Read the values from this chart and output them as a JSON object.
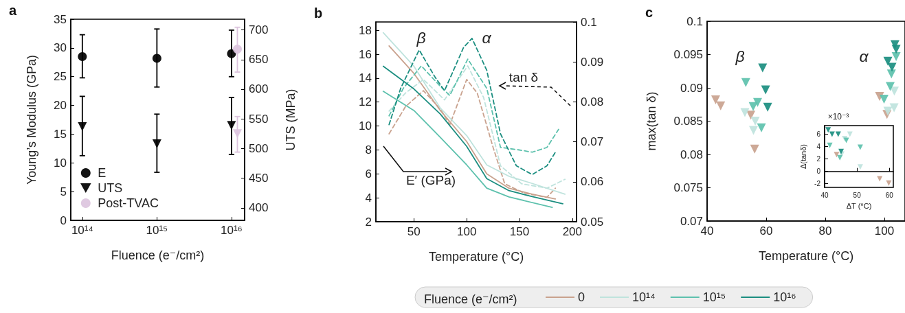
{
  "chart_data": [
    {
      "type": "scatter",
      "title": "a",
      "xlabel": "Fluence (e⁻/cm²)",
      "ylabel": "Young’s Modulus (GPa)",
      "y2label": "UTS (MPa)",
      "log": "x",
      "legend": "bottom left",
      "xlim": [
        70000000000000.0,
        1.5e+16
      ],
      "xticks": [
        {
          "value": 100000000000000.0,
          "label": "10¹⁴"
        },
        {
          "value": 1000000000000000.0,
          "label": "10¹⁵"
        },
        {
          "value": 1e+16,
          "label": "10¹⁶"
        }
      ],
      "ylim": [
        0,
        35
      ],
      "yticks": [
        0,
        5,
        10,
        15,
        20,
        25,
        30,
        35
      ],
      "y2lim": [
        379,
        718
      ],
      "y2ticks": [
        400,
        450,
        500,
        550,
        600,
        650,
        700
      ],
      "series": [
        {
          "name": "E",
          "color": "#000000",
          "marker": "circle",
          "x": [
            100000000000000.0,
            1000000000000000.0,
            1e+16
          ],
          "values": [
            28.5,
            28.2,
            29
          ],
          "errors": [
            [
              24.8,
              32.3
            ],
            [
              23.2,
              33.3
            ],
            [
              25,
              33.1
            ]
          ]
        },
        {
          "name": "UTS",
          "color": "#000000",
          "marker": "triangle",
          "axis": "y2",
          "x": [
            100000000000000.0,
            1000000000000000.0,
            1e+16
          ],
          "values": [
            537,
            508,
            539
          ],
          "errors": [
            [
              488,
              588
            ],
            [
              460,
              558
            ],
            [
              490,
              586
            ]
          ]
        },
        {
          "name": "Post-TVAC",
          "color": "#dcc4de",
          "marker": "circle",
          "x": [
            1.2e+16
          ],
          "values": [
            29.8
          ],
          "errors": [
            [
              25.8,
              33.6
            ]
          ]
        },
        {
          "color": "#dcc4de",
          "marker": "triangle",
          "axis": "y2",
          "x": [
            1.2e+16
          ],
          "values": [
            525
          ],
          "errors": [
            [
              494,
              554
            ]
          ]
        }
      ]
    },
    {
      "type": "line",
      "title": "b",
      "xlabel": "Temperature (°C)",
      "marker": "none",
      "legend": "bottom",
      "legend_title": "Fluence (e⁻/cm²)",
      "xlim": [
        14,
        204
      ],
      "xticks": [
        50,
        100,
        150,
        200
      ],
      "ylim": [
        2,
        18.7
      ],
      "yticks": [
        2,
        4,
        6,
        8,
        10,
        12,
        14,
        16,
        18
      ],
      "y2lim": [
        0.05,
        0.1
      ],
      "y2ticks": [
        0.05,
        0.06,
        0.07,
        0.08,
        0.09,
        0.1
      ],
      "annotations": [
        "β",
        "α",
        "tan δ",
        "E′ (GPa)"
      ],
      "series": [
        {
          "name": "0",
          "color": "#c9a28e",
          "line_style": "solid",
          "x": [
            26.5,
            50,
            75,
            100,
            119,
            140,
            162,
            184
          ],
          "values": [
            16.7,
            14.4,
            11.3,
            8.7,
            6.0,
            4.8,
            4.3,
            3.9
          ]
        },
        {
          "color": "#c9a28e",
          "line_style": "dashed",
          "axis": "y2",
          "x": [
            26.5,
            42,
            59,
            75,
            84,
            100,
            110,
            125,
            136,
            154,
            176,
            184
          ],
          "values": [
            0.072,
            0.0788,
            0.0828,
            0.0782,
            0.0743,
            0.0856,
            0.0822,
            0.0686,
            0.0595,
            0.0572,
            0.0561,
            0.0584
          ]
        },
        {
          "name": "10¹⁴",
          "color": "#bfe3dd",
          "line_style": "solid",
          "x": [
            21,
            50,
            75,
            100,
            119,
            140,
            162,
            193
          ],
          "values": [
            17.8,
            15.0,
            11.5,
            9.2,
            6.75,
            5.8,
            5.2,
            4.3
          ]
        },
        {
          "color": "#bfe3dd",
          "line_style": "dashed",
          "axis": "y2",
          "x": [
            26.5,
            42,
            59,
            79,
            101,
            116,
            132,
            152,
            176,
            193
          ],
          "values": [
            0.0777,
            0.0822,
            0.0856,
            0.0805,
            0.089,
            0.0811,
            0.064,
            0.0595,
            0.0584,
            0.0606
          ]
        },
        {
          "name": "10¹⁵",
          "color": "#5dc1ad",
          "line_style": "solid",
          "x": [
            21,
            50,
            75,
            100,
            119,
            140,
            181
          ],
          "values": [
            12.9,
            11.3,
            9.05,
            6.75,
            4.8,
            4.07,
            3.2
          ]
        },
        {
          "color": "#5dc1ad",
          "line_style": "dashed",
          "axis": "y2",
          "x": [
            26.5,
            40,
            57,
            75,
            84,
            101,
            119,
            132,
            149,
            162,
            176,
            187
          ],
          "values": [
            0.0765,
            0.0834,
            0.089,
            0.0839,
            0.0816,
            0.0907,
            0.0834,
            0.0686,
            0.068,
            0.0674,
            0.0686,
            0.0731
          ]
        },
        {
          "name": "10¹⁶",
          "color": "#1b8e80",
          "line_style": "solid",
          "x": [
            21,
            50,
            75,
            100,
            119,
            140,
            162,
            191
          ],
          "values": [
            15.0,
            13.1,
            11.0,
            8.3,
            5.6,
            4.6,
            4.1,
            3.5
          ]
        },
        {
          "color": "#1b8e80",
          "line_style": "dashed",
          "axis": "y2",
          "x": [
            26.5,
            37.5,
            55,
            70,
            79,
            97,
            105,
            119,
            132,
            147,
            162,
            176,
            184
          ],
          "values": [
            0.0743,
            0.0834,
            0.093,
            0.0862,
            0.0828,
            0.0936,
            0.0959,
            0.0879,
            0.072,
            0.064,
            0.0618,
            0.064,
            0.0674
          ]
        }
      ]
    },
    {
      "type": "scatter",
      "title": "c",
      "xlabel": "Temperature (°C)",
      "ylabel": "max(tan δ)",
      "marker": "triangle",
      "xlim": [
        40,
        107
      ],
      "xticks": [
        40,
        60,
        80,
        100
      ],
      "ylim": [
        0.07,
        0.1
      ],
      "yticks": [
        0.07,
        0.075,
        0.08,
        0.085,
        0.09,
        0.095,
        0.1
      ],
      "annotations": [
        "β",
        "α"
      ],
      "series": [
        {
          "color": "#c9a28e",
          "x": [
            42.9,
            44.6,
            54.8,
            56.1,
            98.4,
            100.9
          ],
          "values": [
            0.0882,
            0.0873,
            0.0859,
            0.0808,
            0.0887,
            0.086
          ]
        },
        {
          "color": "#bfe3dd",
          "x": [
            52.8,
            56.3,
            55.7,
            101.2,
            103.4,
            103.3
          ],
          "values": [
            0.0863,
            0.085,
            0.0836,
            0.0865,
            0.0895,
            0.087
          ]
        },
        {
          "color": "#5dc1ad",
          "x": [
            53.1,
            55.6,
            57.1,
            58.4,
            99.9,
            102,
            102.4,
            104
          ],
          "values": [
            0.0908,
            0.0872,
            0.0878,
            0.084,
            0.0883,
            0.0902,
            0.0921,
            0.0947
          ]
        },
        {
          "color": "#1b8e80",
          "x": [
            58.8,
            59.8,
            60.5,
            101.2,
            102.6,
            103.6,
            104
          ],
          "values": [
            0.093,
            0.0897,
            0.0871,
            0.094,
            0.0931,
            0.0965,
            0.0958
          ]
        }
      ]
    },
    {
      "type": "scatter",
      "xlabel": "ΔT (°C)",
      "ylabel": "Δ(tanδ)",
      "marker": "triangle",
      "annotations": [
        "×10⁻³"
      ],
      "xlim": [
        40,
        61.2
      ],
      "xticks": [
        40,
        50,
        60
      ],
      "ylim": [
        -2.6,
        7.4
      ],
      "yticks": [
        -2,
        0,
        2,
        4,
        6
      ],
      "series": [
        {
          "color": "#c9a28e",
          "x": [
            43.7,
            57,
            59.8
          ],
          "values": [
            2.7,
            -1.2,
            -1.9
          ]
        },
        {
          "color": "#bfe3dd",
          "x": [
            46.2,
            47.8,
            51,
            45.3
          ],
          "values": [
            5.3,
            6.0,
            0.7,
            2.8
          ]
        },
        {
          "color": "#5dc1ad",
          "x": [
            41.6,
            44.7,
            46.7,
            51
          ],
          "values": [
            4.2,
            2.2,
            5.0,
            3.9
          ]
        },
        {
          "color": "#1b8e80",
          "x": [
            41.1,
            42.3,
            44.2,
            45.1
          ],
          "values": [
            6.7,
            6.0,
            6.0,
            3.2
          ]
        }
      ]
    }
  ]
}
